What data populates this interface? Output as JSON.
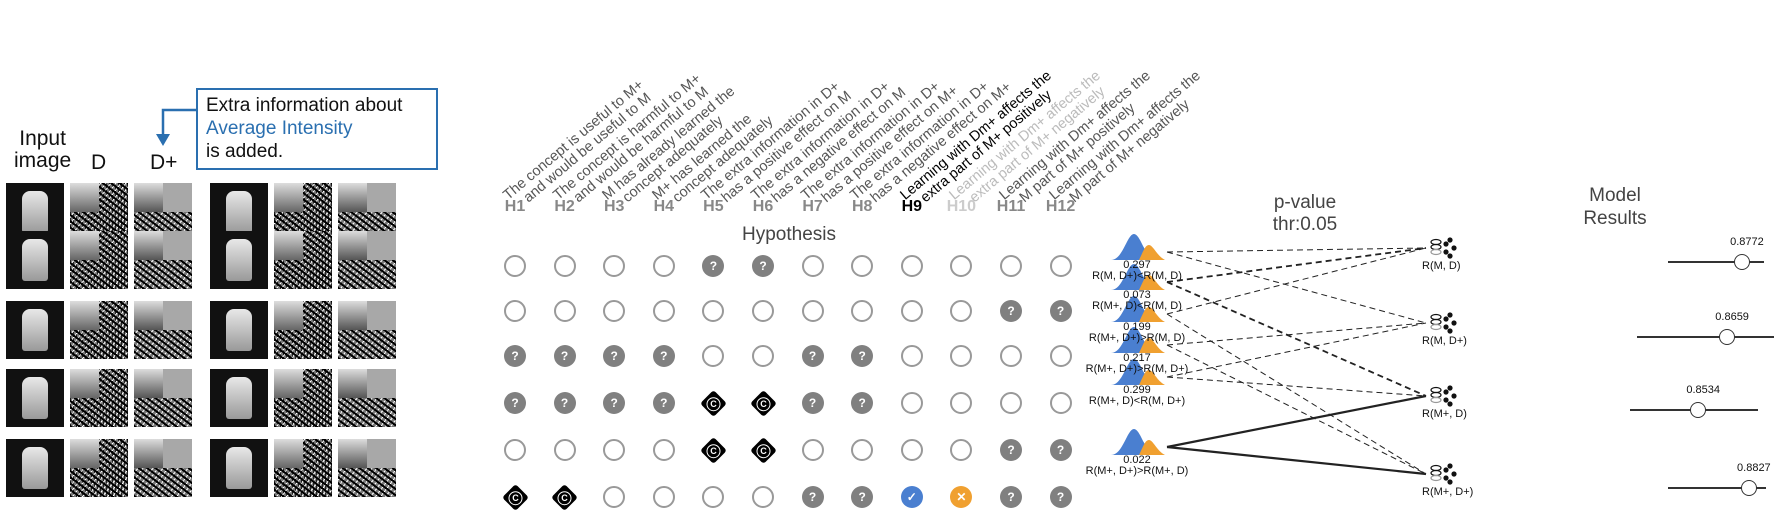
{
  "left_panel": {
    "col_labels": {
      "input": "Input\nimage",
      "d": "D",
      "dplus": "D+"
    },
    "callout": {
      "line1": "Extra information about",
      "line2": "Average Intensity",
      "line3": "is added."
    }
  },
  "hypotheses": {
    "title": "Hypothesis",
    "items": [
      {
        "id": "H1",
        "line1": "The concept is useful to M+",
        "line2": "and would be useful to M",
        "style": "normal"
      },
      {
        "id": "H2",
        "line1": "The concept is harmful to M+",
        "line2": "and would be harmful to M",
        "style": "normal"
      },
      {
        "id": "H3",
        "line1": "M has already learned the",
        "line2": "concept adequately",
        "style": "normal"
      },
      {
        "id": "H4",
        "line1": "M+ has learned the",
        "line2": "concept adequately",
        "style": "normal"
      },
      {
        "id": "H5",
        "line1": "The extra information in D+",
        "line2": "has a positive effect on M",
        "style": "normal"
      },
      {
        "id": "H6",
        "line1": "The extra information in D+",
        "line2": "has a negative effect on M",
        "style": "normal"
      },
      {
        "id": "H7",
        "line1": "The extra information in D+",
        "line2": "has a positive effect on M+",
        "style": "normal"
      },
      {
        "id": "H8",
        "line1": "The extra information in D+",
        "line2": "has a negative effect on M+",
        "style": "normal"
      },
      {
        "id": "H9",
        "line1": "Learning with Dm+ affects the",
        "line2": "extra part of M+ positively",
        "style": "active"
      },
      {
        "id": "H10",
        "line1": "Learning with Dm+ affects the",
        "line2": "extra part of M+ negatively",
        "style": "faded"
      },
      {
        "id": "H11",
        "line1": "Learning with Dm+ affects the",
        "line2": "M part of M+ positively",
        "style": "normal"
      },
      {
        "id": "H12",
        "line1": "Learning with Dm+ affects the",
        "line2": "M part of M+ negatively",
        "style": "normal"
      }
    ],
    "grid": [
      [
        "o",
        "o",
        "o",
        "o",
        "q",
        "q",
        "o",
        "o",
        "o",
        "o",
        "o",
        "o"
      ],
      [
        "o",
        "o",
        "o",
        "o",
        "o",
        "o",
        "o",
        "o",
        "o",
        "o",
        "q",
        "q"
      ],
      [
        "q",
        "q",
        "q",
        "q",
        "o",
        "o",
        "q",
        "q",
        "o",
        "o",
        "o",
        "o"
      ],
      [
        "q",
        "q",
        "q",
        "q",
        "c",
        "c",
        "q",
        "q",
        "o",
        "o",
        "o",
        "o"
      ],
      [
        "o",
        "o",
        "o",
        "o",
        "c",
        "c",
        "o",
        "o",
        "o",
        "o",
        "q",
        "q"
      ],
      [
        "c",
        "c",
        "o",
        "o",
        "o",
        "o",
        "q",
        "q",
        "check",
        "cross",
        "q",
        "q"
      ]
    ],
    "symbols": {
      "q": "?",
      "c": "C",
      "check": "✓",
      "cross": "✕"
    }
  },
  "pvalue": {
    "heading_line1": "p-value",
    "heading_line2": "thr:0.05",
    "tests": [
      {
        "value": "0.297",
        "label": "R(M, D+)<R(M, D)"
      },
      {
        "value": "0.073",
        "label": "R(M+, D)<R(M, D)"
      },
      {
        "value": "0.199",
        "label": "R(M+, D+)>R(M, D)"
      },
      {
        "value": "0.217",
        "label": "R(M+, D+)>R(M, D+)"
      },
      {
        "value": "0.299",
        "label": "R(M+, D)<R(M, D+)"
      },
      {
        "value": "0.022",
        "label": "R(M+, D+)>R(M+, D)"
      }
    ],
    "colors": {
      "blue": "#4a7fd0",
      "orange": "#f0a030"
    }
  },
  "models": {
    "items": [
      {
        "label": "R(M, D)"
      },
      {
        "label": "R(M, D+)"
      },
      {
        "label": "R(M+, D)"
      },
      {
        "label": "R(M+, D+)"
      }
    ]
  },
  "results": {
    "heading_line1": "Model",
    "heading_line2": "Results",
    "values": [
      "0.8772",
      "0.8659",
      "0.8534",
      "0.8827"
    ]
  }
}
